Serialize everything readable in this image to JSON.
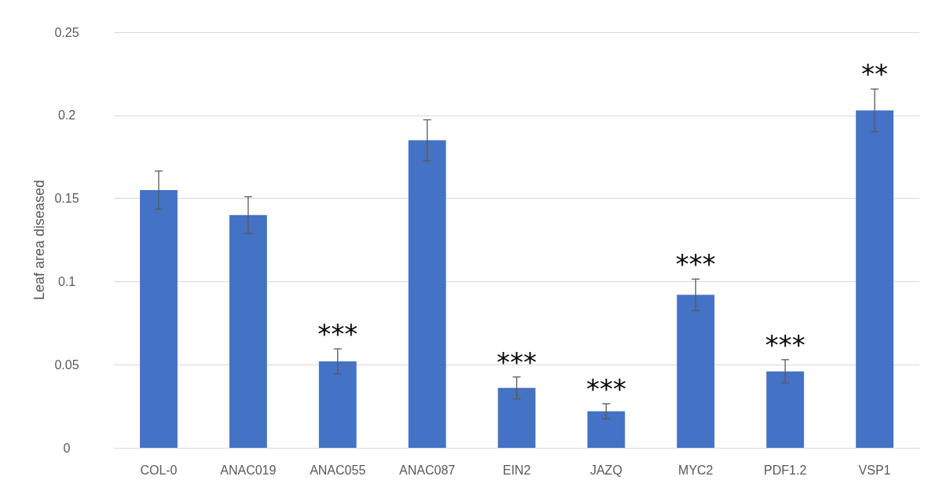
{
  "chart_data": {
    "type": "bar",
    "ylabel": "Leaf area diseased",
    "categories": [
      "COL-0",
      "ANAC019",
      "ANAC055",
      "ANAC087",
      "EIN2",
      "JAZQ",
      "MYC2",
      "PDF1.2",
      "VSP1"
    ],
    "values": [
      0.155,
      0.14,
      0.052,
      0.185,
      0.036,
      0.022,
      0.092,
      0.046,
      0.203
    ],
    "errors": [
      0.0115,
      0.011,
      0.0075,
      0.0123,
      0.0066,
      0.0045,
      0.0095,
      0.007,
      0.0128
    ],
    "color": "#4472c4",
    "ylim": [
      0,
      0.25
    ],
    "yticks": [
      0,
      0.05,
      0.1,
      0.15,
      0.2,
      0.25
    ],
    "grid": "y",
    "annotations": [
      {
        "text": "***",
        "x": "ANAC055",
        "y": 0.0595
      },
      {
        "text": "***",
        "x": "EIN2",
        "y": 0.0426
      },
      {
        "text": "***",
        "x": "JAZQ",
        "y": 0.0267
      },
      {
        "text": "***",
        "x": "MYC2",
        "y": 0.1015
      },
      {
        "text": "***",
        "x": "PDF1.2",
        "y": 0.053
      },
      {
        "text": "**",
        "x": "VSP1",
        "y": 0.2158
      }
    ]
  }
}
